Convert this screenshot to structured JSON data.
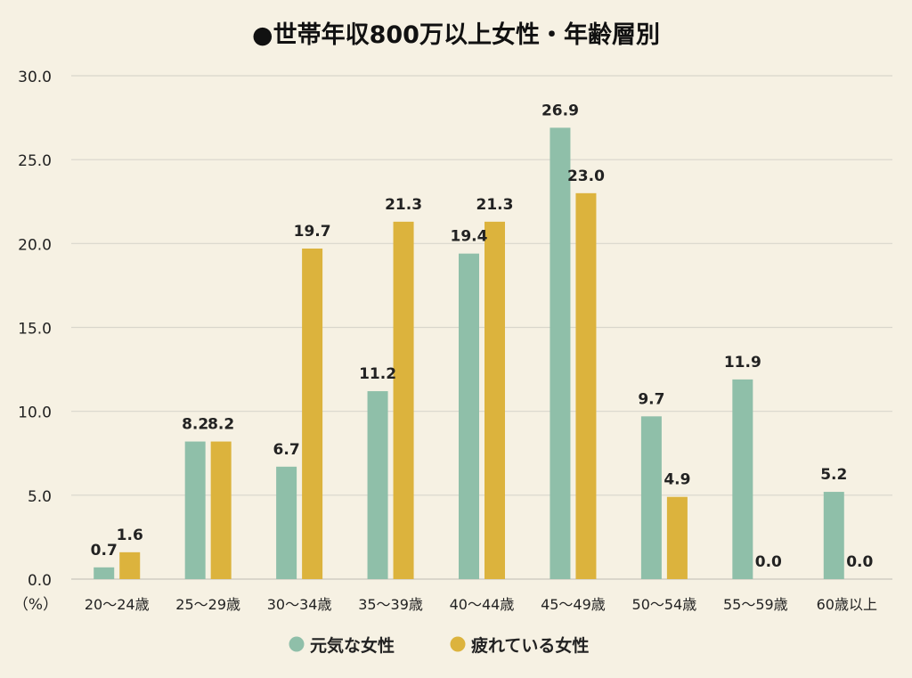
{
  "chart_data": {
    "type": "bar",
    "title": "●世帯年収800万以上女性・年齢層別",
    "unit_label": "（%）",
    "categories": [
      "20～24歳",
      "25～29歳",
      "30～34歳",
      "35～39歳",
      "40～44歳",
      "45～49歳",
      "50～54歳",
      "55～59歳",
      "60歳以上"
    ],
    "series": [
      {
        "name": "元気な女性",
        "color": "#8fbfa9",
        "values": [
          0.7,
          8.2,
          6.7,
          11.2,
          19.4,
          26.9,
          9.7,
          11.9,
          5.2
        ]
      },
      {
        "name": "疲れている女性",
        "color": "#dcb33d",
        "values": [
          1.6,
          8.2,
          19.7,
          21.3,
          21.3,
          23.0,
          4.9,
          0.0,
          0.0
        ]
      }
    ],
    "ylim": [
      0,
      30
    ],
    "yticks": [
      "0.0",
      "5.0",
      "10.0",
      "15.0",
      "20.0",
      "25.0",
      "30.0"
    ],
    "grid": true,
    "legend_position": "bottom"
  }
}
